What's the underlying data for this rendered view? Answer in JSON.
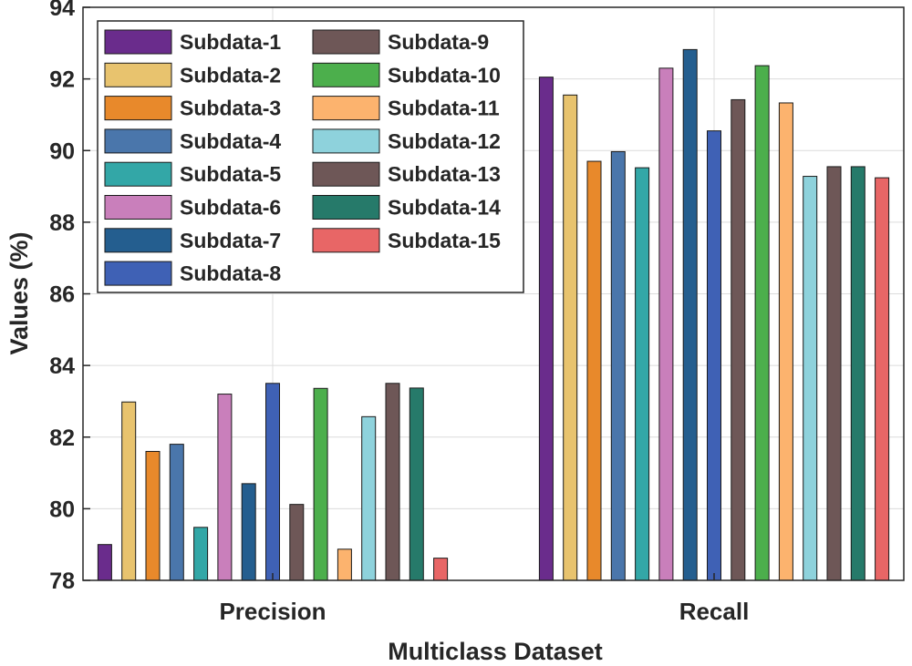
{
  "chart_data": {
    "type": "bar",
    "title": "",
    "xlabel": "Multiclass Dataset",
    "ylabel": "Values (%)",
    "ylim": [
      78,
      94
    ],
    "yticks": [
      78,
      80,
      82,
      84,
      86,
      88,
      90,
      92,
      94
    ],
    "grid": true,
    "legend_position": "top-left",
    "categories": [
      "Precision",
      "Recall"
    ],
    "series": [
      {
        "name": "Subdata-1",
        "color": "#6a2c8c",
        "values": [
          79.0,
          92.05
        ]
      },
      {
        "name": "Subdata-2",
        "color": "#e8c36e",
        "values": [
          82.98,
          91.55
        ]
      },
      {
        "name": "Subdata-3",
        "color": "#e8892b",
        "values": [
          81.6,
          89.7
        ]
      },
      {
        "name": "Subdata-4",
        "color": "#4a76ab",
        "values": [
          81.8,
          89.97
        ]
      },
      {
        "name": "Subdata-5",
        "color": "#33a7a7",
        "values": [
          79.48,
          89.52
        ]
      },
      {
        "name": "Subdata-6",
        "color": "#c97fbb",
        "values": [
          83.2,
          92.3
        ]
      },
      {
        "name": "Subdata-7",
        "color": "#245e8f",
        "values": [
          80.7,
          92.82
        ]
      },
      {
        "name": "Subdata-8",
        "color": "#3f61b5",
        "values": [
          83.5,
          90.55
        ]
      },
      {
        "name": "Subdata-9",
        "color": "#6e5757",
        "values": [
          80.12,
          91.42
        ]
      },
      {
        "name": "Subdata-10",
        "color": "#4caf4c",
        "values": [
          83.36,
          92.37
        ]
      },
      {
        "name": "Subdata-11",
        "color": "#fcb36e",
        "values": [
          78.87,
          91.33
        ]
      },
      {
        "name": "Subdata-12",
        "color": "#8ed2dc",
        "values": [
          82.57,
          89.28
        ]
      },
      {
        "name": "Subdata-13",
        "color": "#6e5757",
        "values": [
          83.5,
          89.55
        ]
      },
      {
        "name": "Subdata-14",
        "color": "#267a6a",
        "values": [
          83.37,
          89.55
        ]
      },
      {
        "name": "Subdata-15",
        "color": "#e86666",
        "values": [
          78.62,
          89.24
        ]
      }
    ]
  }
}
